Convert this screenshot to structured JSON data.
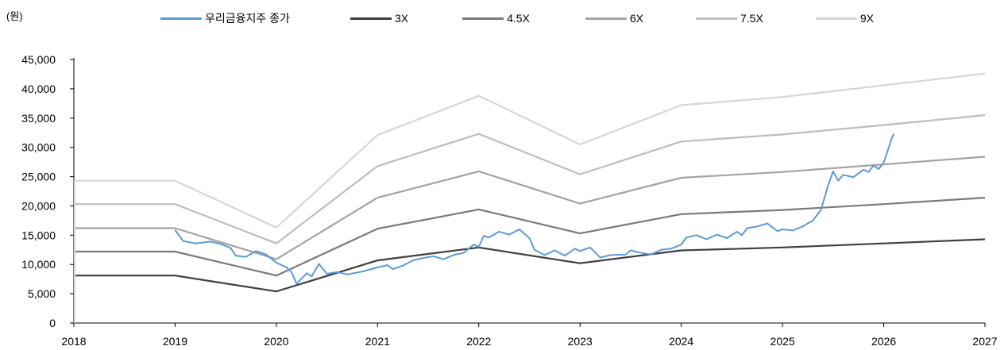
{
  "chart_data": {
    "type": "line",
    "unit_label": "(원)",
    "x_ticks": [
      "2018",
      "2019",
      "2020",
      "2021",
      "2022",
      "2023",
      "2024",
      "2025",
      "2026",
      "2027"
    ],
    "xlim": [
      2018,
      2027
    ],
    "y_ticks": [
      "0",
      "5,000",
      "10,000",
      "15,000",
      "20,000",
      "25,000",
      "30,000",
      "35,000",
      "40,000",
      "45,000"
    ],
    "ylim": [
      0,
      45000
    ],
    "grid": false,
    "legend_position": "top",
    "bands": [
      {
        "name": "3X",
        "color": "#3f3f3f",
        "points": [
          [
            2018.0,
            8100
          ],
          [
            2019.0,
            8100
          ],
          [
            2020.0,
            5400
          ],
          [
            2021.0,
            10700
          ],
          [
            2022.0,
            12900
          ],
          [
            2023.0,
            10200
          ],
          [
            2024.0,
            12400
          ],
          [
            2025.0,
            12900
          ],
          [
            2026.0,
            13600
          ],
          [
            2027.0,
            14300
          ]
        ]
      },
      {
        "name": "4.5X",
        "color": "#7a7a7a",
        "points": [
          [
            2018.0,
            12200
          ],
          [
            2019.0,
            12200
          ],
          [
            2020.0,
            8100
          ],
          [
            2021.0,
            16100
          ],
          [
            2022.0,
            19400
          ],
          [
            2023.0,
            15300
          ],
          [
            2024.0,
            18600
          ],
          [
            2025.0,
            19300
          ],
          [
            2026.0,
            20300
          ],
          [
            2027.0,
            21400
          ]
        ]
      },
      {
        "name": "6X",
        "color": "#a3a3a3",
        "points": [
          [
            2018.0,
            16200
          ],
          [
            2019.0,
            16200
          ],
          [
            2020.0,
            10900
          ],
          [
            2021.0,
            21400
          ],
          [
            2022.0,
            25900
          ],
          [
            2023.0,
            20400
          ],
          [
            2024.0,
            24800
          ],
          [
            2025.0,
            25800
          ],
          [
            2026.0,
            27100
          ],
          [
            2027.0,
            28400
          ]
        ]
      },
      {
        "name": "7.5X",
        "color": "#bdbdbd",
        "points": [
          [
            2018.0,
            20300
          ],
          [
            2019.0,
            20300
          ],
          [
            2020.0,
            13600
          ],
          [
            2021.0,
            26800
          ],
          [
            2022.0,
            32300
          ],
          [
            2023.0,
            25400
          ],
          [
            2024.0,
            31000
          ],
          [
            2025.0,
            32200
          ],
          [
            2026.0,
            33800
          ],
          [
            2027.0,
            35500
          ]
        ]
      },
      {
        "name": "9X",
        "color": "#d6d6d6",
        "points": [
          [
            2018.0,
            24300
          ],
          [
            2019.0,
            24300
          ],
          [
            2020.0,
            16300
          ],
          [
            2021.0,
            32100
          ],
          [
            2022.0,
            38800
          ],
          [
            2023.0,
            30500
          ],
          [
            2024.0,
            37200
          ],
          [
            2025.0,
            38600
          ],
          [
            2026.0,
            40600
          ],
          [
            2027.0,
            42600
          ]
        ]
      }
    ],
    "price_series": {
      "name": "우리금융지주 종가",
      "color": "#5b9bd5",
      "points": [
        [
          2019.0,
          15900
        ],
        [
          2019.08,
          14000
        ],
        [
          2019.2,
          13600
        ],
        [
          2019.35,
          13900
        ],
        [
          2019.45,
          13500
        ],
        [
          2019.55,
          12800
        ],
        [
          2019.6,
          11500
        ],
        [
          2019.7,
          11300
        ],
        [
          2019.8,
          12300
        ],
        [
          2019.9,
          11700
        ],
        [
          2020.0,
          10300
        ],
        [
          2020.1,
          9500
        ],
        [
          2020.15,
          8700
        ],
        [
          2020.2,
          6700
        ],
        [
          2020.3,
          8500
        ],
        [
          2020.35,
          8000
        ],
        [
          2020.42,
          10100
        ],
        [
          2020.5,
          8400
        ],
        [
          2020.6,
          8700
        ],
        [
          2020.7,
          8300
        ],
        [
          2020.85,
          8800
        ],
        [
          2021.0,
          9500
        ],
        [
          2021.1,
          9900
        ],
        [
          2021.15,
          9200
        ],
        [
          2021.25,
          9800
        ],
        [
          2021.35,
          10700
        ],
        [
          2021.45,
          11100
        ],
        [
          2021.55,
          11400
        ],
        [
          2021.65,
          10900
        ],
        [
          2021.75,
          11600
        ],
        [
          2021.85,
          12000
        ],
        [
          2021.95,
          13400
        ],
        [
          2022.0,
          13000
        ],
        [
          2022.05,
          14900
        ],
        [
          2022.1,
          14600
        ],
        [
          2022.2,
          15600
        ],
        [
          2022.3,
          15100
        ],
        [
          2022.4,
          16000
        ],
        [
          2022.5,
          14500
        ],
        [
          2022.55,
          12500
        ],
        [
          2022.65,
          11600
        ],
        [
          2022.75,
          12400
        ],
        [
          2022.85,
          11500
        ],
        [
          2022.95,
          12700
        ],
        [
          2023.0,
          12300
        ],
        [
          2023.1,
          12900
        ],
        [
          2023.2,
          11200
        ],
        [
          2023.3,
          11600
        ],
        [
          2023.45,
          11700
        ],
        [
          2023.5,
          12400
        ],
        [
          2023.6,
          12000
        ],
        [
          2023.7,
          11700
        ],
        [
          2023.8,
          12500
        ],
        [
          2023.9,
          12700
        ],
        [
          2024.0,
          13400
        ],
        [
          2024.05,
          14600
        ],
        [
          2024.15,
          15000
        ],
        [
          2024.25,
          14300
        ],
        [
          2024.35,
          15100
        ],
        [
          2024.45,
          14500
        ],
        [
          2024.55,
          15600
        ],
        [
          2024.6,
          15000
        ],
        [
          2024.65,
          16200
        ],
        [
          2024.75,
          16500
        ],
        [
          2024.85,
          17000
        ],
        [
          2024.95,
          15700
        ],
        [
          2025.0,
          16000
        ],
        [
          2025.1,
          15800
        ],
        [
          2025.2,
          16500
        ],
        [
          2025.3,
          17500
        ],
        [
          2025.38,
          19300
        ],
        [
          2025.45,
          23500
        ],
        [
          2025.5,
          25900
        ],
        [
          2025.55,
          24300
        ],
        [
          2025.6,
          25300
        ],
        [
          2025.7,
          24900
        ],
        [
          2025.8,
          26200
        ],
        [
          2025.85,
          25800
        ],
        [
          2025.9,
          26900
        ],
        [
          2025.95,
          26300
        ],
        [
          2026.0,
          27400
        ],
        [
          2026.05,
          30000
        ],
        [
          2026.08,
          31600
        ],
        [
          2026.1,
          32300
        ]
      ]
    },
    "legend": [
      "우리금융지주 종가",
      "3X",
      "4.5X",
      "6X",
      "7.5X",
      "9X"
    ]
  }
}
